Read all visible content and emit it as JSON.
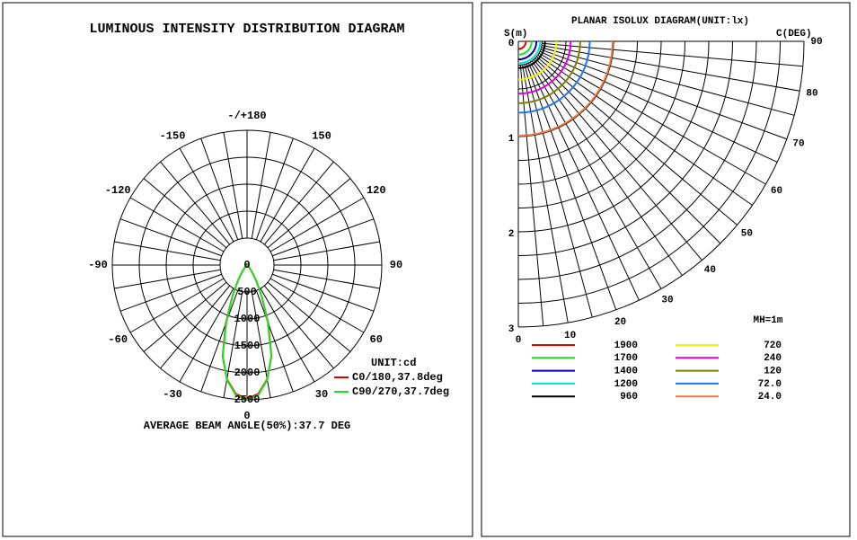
{
  "chart_data": [
    {
      "type": "polar",
      "title": "LUMINOUS INTENSITY DISTRIBUTION DIAGRAM",
      "footer": "AVERAGE BEAM ANGLE(50%):37.7 DEG",
      "unit_label": "UNIT:cd",
      "rlim": [
        0,
        2500
      ],
      "rticks": [
        0,
        500,
        1000,
        1500,
        2000,
        2500
      ],
      "aticks": [
        {
          "value": 180,
          "label": "-/+180"
        },
        -150,
        150,
        -120,
        120,
        -90,
        90,
        -60,
        60,
        -30,
        30,
        0
      ],
      "agrid": [
        -170,
        -160,
        -150,
        -140,
        -130,
        -120,
        -110,
        -100,
        -90,
        -80,
        -70,
        -60,
        -50,
        -40,
        -30,
        -20,
        -10,
        0,
        10,
        20,
        30,
        40,
        50,
        60,
        70,
        80,
        90,
        100,
        110,
        120,
        130,
        140,
        150,
        160,
        170,
        180
      ],
      "angles": [
        -60,
        -55,
        -50,
        -45,
        -40,
        -35,
        -30,
        -25,
        -20,
        -15,
        -10,
        -5,
        0,
        5,
        10,
        15,
        20,
        25,
        30,
        35,
        40,
        45,
        50,
        55,
        60
      ],
      "series": [
        {
          "name": "C0/180,37.8deg",
          "color": "#e00000",
          "values": [
            0,
            10,
            20,
            40,
            80,
            170,
            350,
            650,
            1150,
            1750,
            2150,
            2400,
            2480,
            2400,
            2150,
            1750,
            1150,
            650,
            350,
            170,
            80,
            40,
            20,
            10,
            0
          ]
        },
        {
          "name": "C90/270,37.7deg",
          "color": "#22e022",
          "values": [
            0,
            10,
            20,
            45,
            85,
            180,
            360,
            640,
            1120,
            1740,
            2160,
            2420,
            2500,
            2420,
            2160,
            1740,
            1120,
            640,
            360,
            180,
            85,
            45,
            20,
            10,
            0
          ]
        }
      ]
    },
    {
      "type": "isolux",
      "title": "PLANAR ISOLUX DIAGRAM(UNIT:lx)",
      "ylabel": "S(m)",
      "clabel": "C(DEG)",
      "note": "MH=1m",
      "rlim": [
        0,
        3
      ],
      "rticks": [
        0,
        1,
        2,
        3
      ],
      "rgrid": [
        0.25,
        0.5,
        0.75,
        1,
        1.25,
        1.5,
        1.75,
        2,
        2.25,
        2.5,
        2.75,
        3
      ],
      "cticks": [
        0,
        10,
        20,
        30,
        40,
        50,
        60,
        70,
        80,
        90
      ],
      "cgrid": [
        0,
        5,
        10,
        15,
        20,
        25,
        30,
        35,
        40,
        45,
        50,
        55,
        60,
        65,
        70,
        75,
        80,
        85,
        90
      ],
      "series": [
        {
          "name": "1900",
          "color": "#e00000",
          "radius": 0.08
        },
        {
          "name": "1700",
          "color": "#22e022",
          "radius": 0.14
        },
        {
          "name": "1400",
          "color": "#0000c8",
          "radius": 0.19
        },
        {
          "name": "1200",
          "color": "#00e0e0",
          "radius": 0.23
        },
        {
          "name": "960",
          "color": "#000000",
          "radius": 0.28
        },
        {
          "name": "720",
          "color": "#f0f000",
          "radius": 0.4
        },
        {
          "name": "240",
          "color": "#e000e0",
          "radius": 0.55
        },
        {
          "name": "120",
          "color": "#808000",
          "radius": 0.65
        },
        {
          "name": "72.0",
          "color": "#1e78f0",
          "radius": 0.75
        },
        {
          "name": "24.0",
          "color": "#f07840",
          "radius": 0.99
        }
      ]
    }
  ]
}
